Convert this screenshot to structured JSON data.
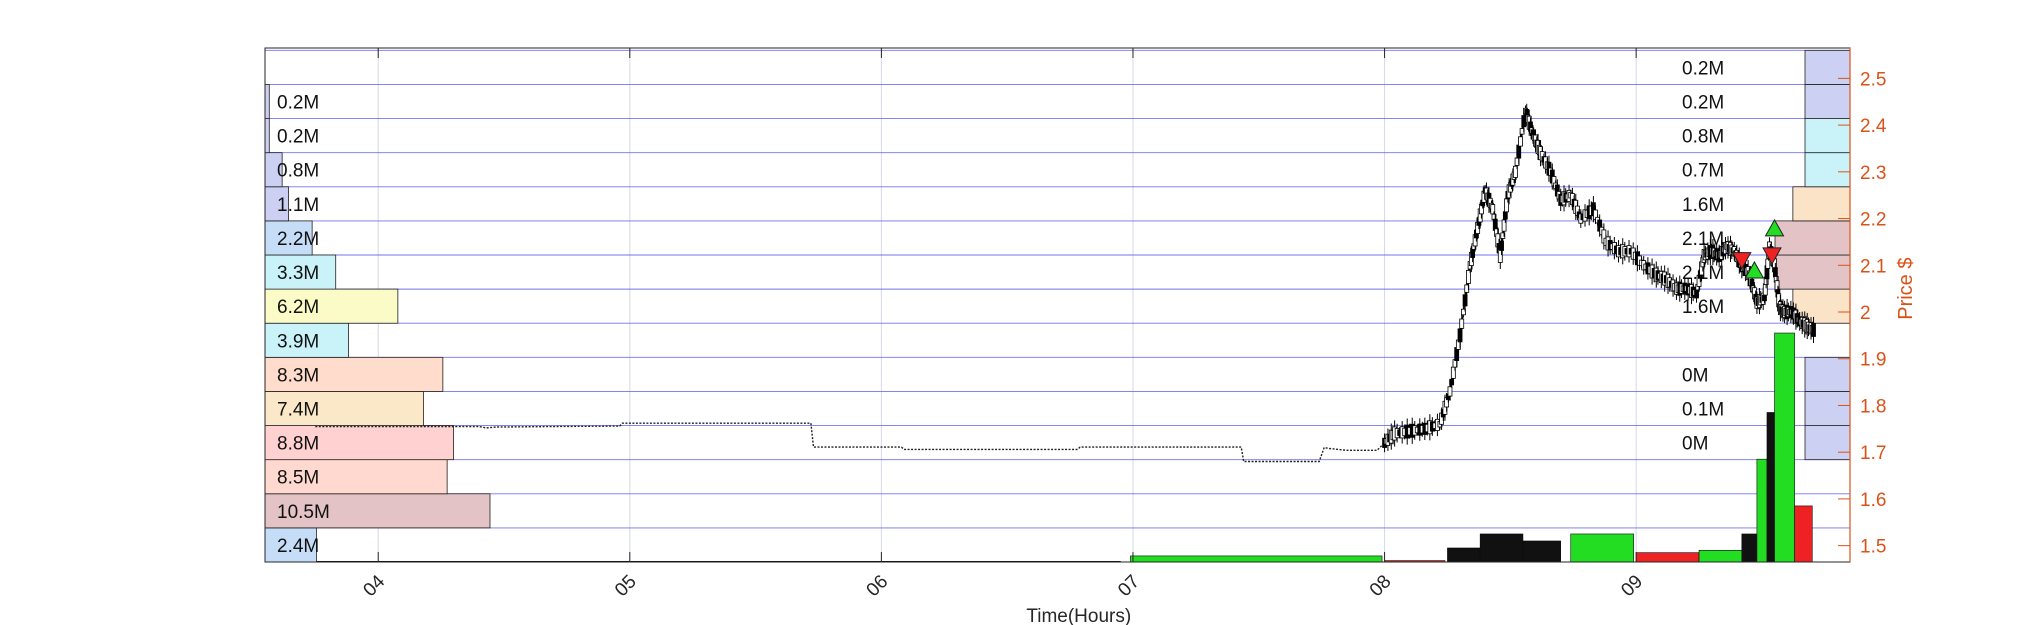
{
  "chart_data": {
    "type": "candlestick",
    "xlabel": "Time(Hours)",
    "ylabel": "Price $",
    "xlim": [
      3.55,
      9.85
    ],
    "ylim": [
      1.465,
      2.565
    ],
    "x_ticks": [
      "04",
      "05",
      "06",
      "07",
      "08",
      "09"
    ],
    "x_tick_values": [
      4,
      5,
      6,
      7,
      8,
      9
    ],
    "y_ticks": [
      "1.5",
      "1.6",
      "1.7",
      "1.8",
      "1.9",
      "2",
      "2.1",
      "2.2",
      "2.3",
      "2.4",
      "2.5"
    ],
    "y_tick_values": [
      1.5,
      1.6,
      1.7,
      1.8,
      1.9,
      2.0,
      2.1,
      2.2,
      2.3,
      2.4,
      2.5
    ],
    "price_bin_edges": [
      1.465,
      1.538,
      1.611,
      1.684,
      1.757,
      1.83,
      1.903,
      1.976,
      2.049,
      2.122,
      2.195,
      2.268,
      2.341,
      2.414,
      2.487,
      2.56
    ],
    "volume_profile_left": [
      {
        "price_bin": 0,
        "label": "2.4M",
        "value": 2.4,
        "color": "#c6ddf7"
      },
      {
        "price_bin": 1,
        "label": "10.5M",
        "value": 10.5,
        "color": "#e3c3c6"
      },
      {
        "price_bin": 2,
        "label": "8.5M",
        "value": 8.5,
        "color": "#ffd9cf"
      },
      {
        "price_bin": 3,
        "label": "8.8M",
        "value": 8.8,
        "color": "#ffd1d1"
      },
      {
        "price_bin": 4,
        "label": "7.4M",
        "value": 7.4,
        "color": "#fbe8c8"
      },
      {
        "price_bin": 5,
        "label": "8.3M",
        "value": 8.3,
        "color": "#ffdccc"
      },
      {
        "price_bin": 6,
        "label": "3.9M",
        "value": 3.9,
        "color": "#c9f3f9"
      },
      {
        "price_bin": 7,
        "label": "6.2M",
        "value": 6.2,
        "color": "#fbfbc8"
      },
      {
        "price_bin": 8,
        "label": "3.3M",
        "value": 3.3,
        "color": "#c9f3f9"
      },
      {
        "price_bin": 9,
        "label": "2.2M",
        "value": 2.2,
        "color": "#c6ddf7"
      },
      {
        "price_bin": 10,
        "label": "1.1M",
        "value": 1.1,
        "color": "#ccd0f3"
      },
      {
        "price_bin": 11,
        "label": "0.8M",
        "value": 0.8,
        "color": "#ccd0f3"
      },
      {
        "price_bin": 12,
        "label": "0.2M",
        "value": 0.2,
        "color": "#ccd0f3"
      },
      {
        "price_bin": 13,
        "label": "0.2M",
        "value": 0.2,
        "color": "#ccd0f3"
      }
    ],
    "volume_profile_right": [
      {
        "price_bin": 3,
        "label": "0M",
        "value": 0.0,
        "color": "#ccd0f3"
      },
      {
        "price_bin": 4,
        "label": "0.1M",
        "value": 0.1,
        "color": "#ccd0f3"
      },
      {
        "price_bin": 5,
        "label": "0M",
        "value": 0.0,
        "color": "#ccd0f3"
      },
      {
        "price_bin": 7,
        "label": "1.6M",
        "value": 1.6,
        "color": "#fbe3c8"
      },
      {
        "price_bin": 8,
        "label": "2.1M",
        "value": 2.1,
        "color": "#e3c3c6"
      },
      {
        "price_bin": 9,
        "label": "2.1M",
        "value": 2.1,
        "color": "#e3c3c6"
      },
      {
        "price_bin": 10,
        "label": "1.6M",
        "value": 1.6,
        "color": "#fbe3c8"
      },
      {
        "price_bin": 11,
        "label": "0.7M",
        "value": 0.7,
        "color": "#c9f3f9"
      },
      {
        "price_bin": 12,
        "label": "0.8M",
        "value": 0.8,
        "color": "#c9f3f9"
      },
      {
        "price_bin": 13,
        "label": "0.2M",
        "value": 0.2,
        "color": "#ccd0f3"
      },
      {
        "price_bin": 14,
        "label": "0.2M",
        "value": 0.2,
        "color": "#ccd0f3"
      }
    ],
    "price_path": [
      [
        3.75,
        1.755
      ],
      [
        4.4,
        1.755
      ],
      [
        4.43,
        1.752
      ],
      [
        4.47,
        1.754
      ],
      [
        4.96,
        1.756
      ],
      [
        4.97,
        1.762
      ],
      [
        5.72,
        1.762
      ],
      [
        5.73,
        1.711
      ],
      [
        6.08,
        1.711
      ],
      [
        6.09,
        1.706
      ],
      [
        6.78,
        1.706
      ],
      [
        6.79,
        1.711
      ],
      [
        7.43,
        1.711
      ],
      [
        7.44,
        1.68
      ],
      [
        7.74,
        1.68
      ],
      [
        7.76,
        1.71
      ],
      [
        7.78,
        1.708
      ],
      [
        7.85,
        1.704
      ],
      [
        7.9,
        1.704
      ],
      [
        7.97,
        1.704
      ],
      [
        8.0,
        1.72
      ],
      [
        8.04,
        1.74
      ],
      [
        8.1,
        1.745
      ],
      [
        8.16,
        1.75
      ],
      [
        8.22,
        1.76
      ],
      [
        8.26,
        1.83
      ],
      [
        8.3,
        1.95
      ],
      [
        8.34,
        2.1
      ],
      [
        8.37,
        2.18
      ],
      [
        8.4,
        2.26
      ],
      [
        8.43,
        2.22
      ],
      [
        8.46,
        2.12
      ],
      [
        8.49,
        2.25
      ],
      [
        8.52,
        2.3
      ],
      [
        8.56,
        2.43
      ],
      [
        8.59,
        2.38
      ],
      [
        8.62,
        2.34
      ],
      [
        8.66,
        2.3
      ],
      [
        8.7,
        2.24
      ],
      [
        8.74,
        2.25
      ],
      [
        8.78,
        2.2
      ],
      [
        8.83,
        2.22
      ],
      [
        8.88,
        2.15
      ],
      [
        8.93,
        2.13
      ],
      [
        8.98,
        2.13
      ],
      [
        9.03,
        2.1
      ],
      [
        9.08,
        2.08
      ],
      [
        9.12,
        2.07
      ],
      [
        9.16,
        2.05
      ],
      [
        9.2,
        2.05
      ],
      [
        9.24,
        2.04
      ],
      [
        9.27,
        2.12
      ],
      [
        9.3,
        2.13
      ],
      [
        9.33,
        2.12
      ],
      [
        9.36,
        2.14
      ],
      [
        9.39,
        2.13
      ],
      [
        9.42,
        2.1
      ],
      [
        9.45,
        2.08
      ],
      [
        9.48,
        2.02
      ],
      [
        9.51,
        2.03
      ],
      [
        9.53,
        2.14
      ],
      [
        9.55,
        2.1
      ],
      [
        9.57,
        2.01
      ],
      [
        9.59,
        2.0
      ],
      [
        9.62,
        2.0
      ],
      [
        9.65,
        1.98
      ],
      [
        9.68,
        1.97
      ],
      [
        9.71,
        1.96
      ]
    ],
    "trade_signals": [
      {
        "type": "buy",
        "x": 9.47,
        "y": 2.09
      },
      {
        "type": "sell",
        "x": 9.42,
        "y": 2.11
      },
      {
        "type": "sell",
        "x": 9.54,
        "y": 2.12
      },
      {
        "type": "buy",
        "x": 9.55,
        "y": 2.18
      }
    ],
    "volume_bars": {
      "baseline_price": 1.465,
      "segments": [
        {
          "from": 3.55,
          "to": 6.95,
          "height": 0.0015,
          "color": "#1a1a1a"
        },
        {
          "from": 6.99,
          "to": 7.99,
          "height": 0.013,
          "color": "#22dd22"
        },
        {
          "from": 8.0,
          "to": 8.24,
          "height": 0.003,
          "color": "#ee2222"
        },
        {
          "from": 8.25,
          "to": 8.38,
          "height": 0.03,
          "color": "#111111"
        },
        {
          "from": 8.38,
          "to": 8.55,
          "height": 0.06,
          "color": "#111111"
        },
        {
          "from": 8.55,
          "to": 8.7,
          "height": 0.045,
          "color": "#111111"
        },
        {
          "from": 8.74,
          "to": 8.99,
          "height": 0.06,
          "color": "#22dd22"
        },
        {
          "from": 9.0,
          "to": 9.25,
          "height": 0.02,
          "color": "#ee2222"
        },
        {
          "from": 9.25,
          "to": 9.42,
          "height": 0.025,
          "color": "#22dd22"
        },
        {
          "from": 9.42,
          "to": 9.48,
          "height": 0.06,
          "color": "#111111"
        },
        {
          "from": 9.48,
          "to": 9.52,
          "height": 0.22,
          "color": "#22dd22"
        },
        {
          "from": 9.52,
          "to": 9.55,
          "height": 0.32,
          "color": "#111111"
        },
        {
          "from": 9.55,
          "to": 9.63,
          "height": 0.49,
          "color": "#22dd22"
        },
        {
          "from": 9.63,
          "to": 9.7,
          "height": 0.12,
          "color": "#ee2222"
        }
      ]
    },
    "grid": true,
    "colors": {
      "grid_major": "#5b5bf0",
      "grid_minor": "#d7d7e8",
      "right_axis": "#d95319",
      "up": "#22dd22",
      "down": "#ee2222",
      "candle": "#000000"
    }
  }
}
